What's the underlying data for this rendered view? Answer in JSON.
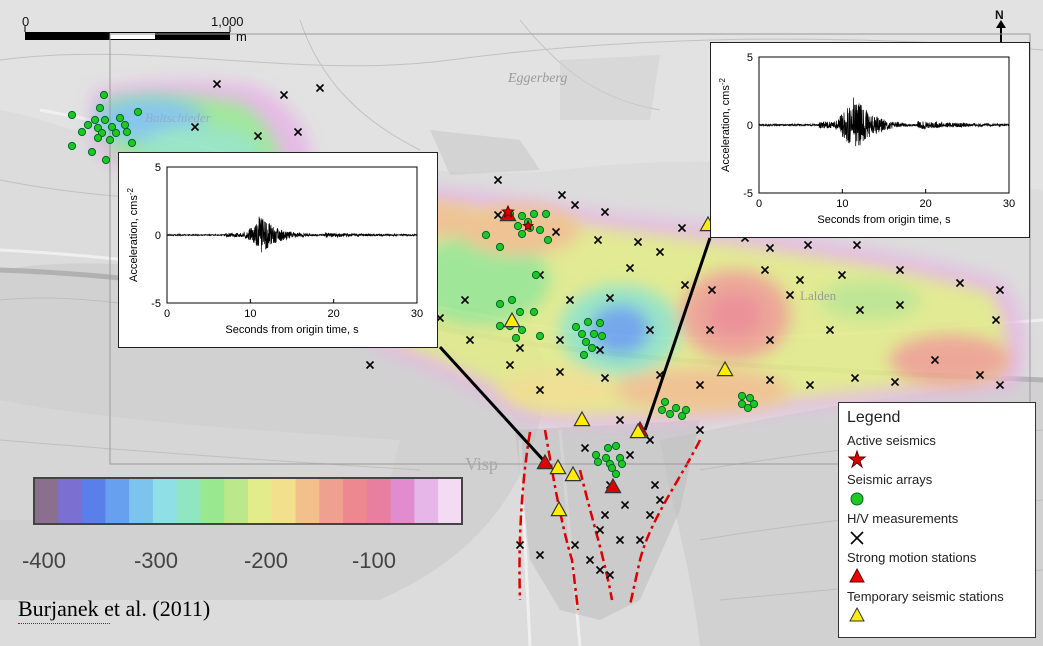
{
  "scale_bar": {
    "start_label": "0",
    "end_label": "1,000",
    "unit": "m"
  },
  "north_label": "N",
  "map_labels": [
    "Eggerberg",
    "Baltschieder",
    "Lalden",
    "Visp"
  ],
  "colorbar": {
    "ticks": [
      "-400",
      "-300",
      "-200",
      "-100"
    ],
    "colors": [
      "#8b6f8e",
      "#7b6fcf",
      "#5a7fe8",
      "#66a0ee",
      "#7cc3ee",
      "#8ee0e6",
      "#90e6c3",
      "#98e890",
      "#bce88c",
      "#e3ec8a",
      "#f3e08c",
      "#f3c08c",
      "#f0a090",
      "#ee8890",
      "#e87fa0",
      "#e08ccf",
      "#e6b6e6",
      "#f3dcf3"
    ]
  },
  "inset_left": {
    "ylabel": "Acceleration, cms",
    "ylabel_exp": "-2",
    "xlabel": "Seconds from origin time, s",
    "yticks": [
      "5",
      "0",
      "-5"
    ],
    "xticks": [
      "0",
      "10",
      "20",
      "30"
    ]
  },
  "inset_right": {
    "ylabel": "Acceleration, cms",
    "ylabel_exp": "-2",
    "xlabel": "Seconds from origin time, s",
    "yticks": [
      "5",
      "0",
      "-5"
    ],
    "xticks": [
      "0",
      "10",
      "20",
      "30"
    ]
  },
  "legend": {
    "title": "Legend",
    "items": [
      {
        "label": "Active seismics",
        "symbol": "red-star"
      },
      {
        "label": "Seismic arrays",
        "symbol": "green-circle"
      },
      {
        "label": "H/V measurements",
        "symbol": "black-x"
      },
      {
        "label": "Strong motion stations",
        "symbol": "red-triangle"
      },
      {
        "label": "Temporary seismic stations",
        "symbol": "yellow-triangle"
      }
    ]
  },
  "credit": "Burjanek et al. (2011)"
}
